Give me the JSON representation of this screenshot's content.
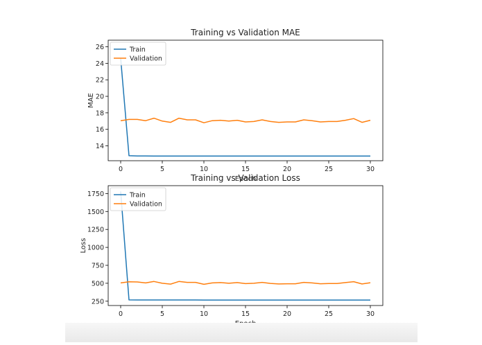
{
  "chart_data": [
    {
      "type": "line",
      "title": "Training vs Validation MAE",
      "xlabel": "Epoch",
      "ylabel": "MAE",
      "xlim": [
        -1.5,
        31.5
      ],
      "ylim": [
        12.2,
        26.8
      ],
      "xticks": [
        0,
        5,
        10,
        15,
        20,
        25,
        30
      ],
      "yticks": [
        14,
        16,
        18,
        20,
        22,
        24,
        26
      ],
      "legend": "top-left",
      "x": [
        0,
        1,
        2,
        3,
        4,
        5,
        6,
        7,
        8,
        9,
        10,
        11,
        12,
        13,
        14,
        15,
        16,
        17,
        18,
        19,
        20,
        21,
        22,
        23,
        24,
        25,
        26,
        27,
        28,
        29,
        30
      ],
      "series": [
        {
          "name": "Train",
          "color": "#1f77b4",
          "values": [
            24.6,
            12.8,
            12.78,
            12.78,
            12.77,
            12.77,
            12.77,
            12.77,
            12.77,
            12.77,
            12.76,
            12.76,
            12.76,
            12.76,
            12.76,
            12.76,
            12.76,
            12.76,
            12.76,
            12.76,
            12.76,
            12.76,
            12.76,
            12.76,
            12.76,
            12.76,
            12.76,
            12.76,
            12.76,
            12.76,
            12.76
          ]
        },
        {
          "name": "Validation",
          "color": "#ff7f0e",
          "values": [
            17.05,
            17.2,
            17.2,
            17.05,
            17.35,
            17.0,
            16.85,
            17.35,
            17.15,
            17.15,
            16.8,
            17.05,
            17.1,
            17.0,
            17.1,
            16.9,
            16.95,
            17.15,
            16.95,
            16.85,
            16.9,
            16.9,
            17.15,
            17.05,
            16.9,
            16.95,
            16.95,
            17.1,
            17.3,
            16.85,
            17.1
          ]
        }
      ]
    },
    {
      "type": "line",
      "title": "Training vs Validation Loss",
      "xlabel": "Epoch",
      "ylabel": "Loss",
      "xlim": [
        -1.5,
        31.5
      ],
      "ylim": [
        190,
        1860
      ],
      "xticks": [
        0,
        5,
        10,
        15,
        20,
        25,
        30
      ],
      "yticks": [
        250,
        500,
        750,
        1000,
        1250,
        1500,
        1750
      ],
      "legend": "top-left",
      "x": [
        0,
        1,
        2,
        3,
        4,
        5,
        6,
        7,
        8,
        9,
        10,
        11,
        12,
        13,
        14,
        15,
        16,
        17,
        18,
        19,
        20,
        21,
        22,
        23,
        24,
        25,
        26,
        27,
        28,
        29,
        30
      ],
      "series": [
        {
          "name": "Train",
          "color": "#1f77b4",
          "values": [
            1780,
            268,
            267,
            267,
            267,
            267,
            267,
            267,
            267,
            267,
            266,
            266,
            266,
            266,
            266,
            266,
            266,
            266,
            266,
            266,
            266,
            266,
            266,
            266,
            266,
            266,
            266,
            266,
            266,
            266,
            266
          ]
        },
        {
          "name": "Validation",
          "color": "#ff7f0e",
          "values": [
            505,
            520,
            518,
            505,
            525,
            500,
            488,
            525,
            512,
            512,
            485,
            505,
            510,
            500,
            510,
            495,
            500,
            512,
            498,
            490,
            493,
            493,
            512,
            505,
            493,
            497,
            497,
            510,
            522,
            490,
            508
          ]
        }
      ]
    }
  ]
}
